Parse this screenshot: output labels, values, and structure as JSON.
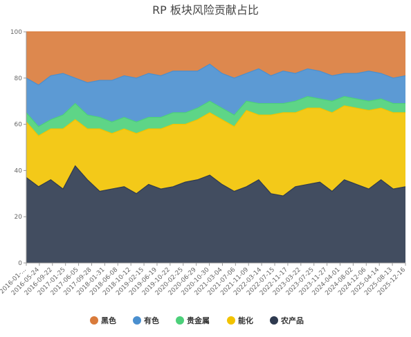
{
  "chart_data": {
    "type": "area",
    "stacked": true,
    "title": "RP 板块风险贡献占比",
    "xlabel": "",
    "ylabel": "",
    "ylim": [
      0,
      100
    ],
    "y_ticks": [
      0,
      20,
      40,
      60,
      80,
      100
    ],
    "x_tick_labels": [
      "2016-01-...",
      "2016-05-24",
      "2016-09-22",
      "2017-01-25",
      "2017-06-05",
      "2017-09-28",
      "2018-01-31",
      "2018-06-08",
      "2018-10-12",
      "2019-02-15",
      "2019-06-19",
      "2019-10-22",
      "2020-02-25",
      "2020-06-29",
      "2020-10-30",
      "2021-03-04",
      "2021-07-06",
      "2021-11-09",
      "2022-03-14",
      "2022-07-15",
      "2022-11-17",
      "2023-03-22",
      "2023-07-25",
      "2023-11-27",
      "2024-04-01",
      "2024-08-02",
      "2024-12-06",
      "2025-04-14",
      "2025-08-13",
      "2025-12-16"
    ],
    "legend_position": "bottom",
    "grid": false,
    "series": [
      {
        "name": "农产品",
        "color": "#2e3a4f",
        "values": [
          37,
          33,
          36,
          32,
          42,
          36,
          31,
          32,
          33,
          30,
          34,
          32,
          33,
          35,
          36,
          38,
          34,
          31,
          33,
          36,
          30,
          29,
          33,
          34,
          35,
          31,
          36,
          34,
          32,
          36,
          32,
          33
        ]
      },
      {
        "name": "能化",
        "color": "#f2c300",
        "values": [
          24,
          22,
          22,
          26,
          20,
          22,
          27,
          24,
          25,
          26,
          24,
          26,
          27,
          25,
          26,
          27,
          28,
          28,
          33,
          28,
          34,
          36,
          32,
          33,
          32,
          34,
          32,
          33,
          34,
          31,
          33,
          32
        ]
      },
      {
        "name": "贵金属",
        "color": "#4cd07a",
        "values": [
          4,
          4,
          4,
          6,
          7,
          6,
          5,
          5,
          5,
          5,
          5,
          5,
          5,
          5,
          5,
          5,
          5,
          5,
          4,
          5,
          5,
          4,
          5,
          5,
          4,
          5,
          4,
          4,
          4,
          4,
          4,
          4
        ]
      },
      {
        "name": "有色",
        "color": "#4a8fcf",
        "values": [
          15,
          18,
          19,
          18,
          11,
          14,
          16,
          18,
          18,
          19,
          19,
          18,
          18,
          18,
          16,
          16,
          15,
          16,
          12,
          15,
          12,
          14,
          12,
          12,
          12,
          11,
          10,
          11,
          13,
          11,
          11,
          12
        ]
      },
      {
        "name": "黑色",
        "color": "#d97b3b",
        "values": [
          20,
          23,
          19,
          18,
          20,
          22,
          21,
          21,
          19,
          20,
          18,
          19,
          17,
          17,
          17,
          14,
          18,
          20,
          18,
          16,
          19,
          17,
          18,
          16,
          17,
          19,
          18,
          18,
          17,
          18,
          20,
          19
        ]
      }
    ]
  }
}
